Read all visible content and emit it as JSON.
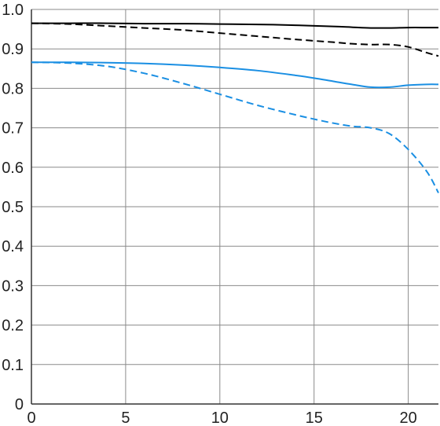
{
  "chart_data": {
    "type": "line",
    "title": "",
    "xlabel": "",
    "ylabel": "",
    "xlim": [
      0,
      21.6
    ],
    "ylim": [
      0,
      1.0
    ],
    "x_ticks": [
      0,
      5,
      10,
      15,
      20
    ],
    "x_tick_labels": [
      "0",
      "5",
      "10",
      "15",
      "20"
    ],
    "y_ticks": [
      0,
      0.1,
      0.2,
      0.3,
      0.4,
      0.5,
      0.6,
      0.7,
      0.8,
      0.9,
      1.0
    ],
    "y_tick_labels": [
      "0",
      "0.1",
      "0.2",
      "0.3",
      "0.4",
      "0.5",
      "0.6",
      "0.7",
      "0.8",
      "0.9",
      "1.0"
    ],
    "grid": true,
    "legend": "none",
    "series": [
      {
        "color": "#000000",
        "style": "solid",
        "x": [
          0,
          2,
          4,
          6,
          8,
          10,
          12,
          14,
          16,
          17,
          18,
          19,
          20,
          21,
          21.6
        ],
        "y": [
          0.965,
          0.965,
          0.965,
          0.964,
          0.964,
          0.963,
          0.962,
          0.96,
          0.957,
          0.955,
          0.953,
          0.953,
          0.954,
          0.954,
          0.954
        ]
      },
      {
        "color": "#000000",
        "style": "dashed",
        "x": [
          0,
          2,
          4,
          6,
          8,
          10,
          12,
          14,
          16,
          17,
          18,
          19,
          20,
          21,
          21.6
        ],
        "y": [
          0.965,
          0.963,
          0.958,
          0.953,
          0.948,
          0.94,
          0.932,
          0.924,
          0.917,
          0.913,
          0.911,
          0.911,
          0.905,
          0.89,
          0.882
        ]
      },
      {
        "color": "#1a8fe3",
        "style": "solid",
        "x": [
          0,
          2,
          4,
          6,
          8,
          10,
          12,
          14,
          15,
          16,
          17,
          18,
          19,
          20,
          21,
          21.6
        ],
        "y": [
          0.866,
          0.866,
          0.865,
          0.863,
          0.859,
          0.853,
          0.845,
          0.833,
          0.826,
          0.818,
          0.81,
          0.803,
          0.803,
          0.808,
          0.81,
          0.81
        ]
      },
      {
        "color": "#1a8fe3",
        "style": "dashed",
        "x": [
          0,
          2,
          4,
          6,
          8,
          10,
          12,
          14,
          15,
          16,
          17,
          18,
          19,
          20,
          21,
          21.6
        ],
        "y": [
          0.866,
          0.864,
          0.856,
          0.838,
          0.813,
          0.785,
          0.757,
          0.733,
          0.722,
          0.712,
          0.704,
          0.7,
          0.685,
          0.645,
          0.588,
          0.535
        ]
      }
    ]
  }
}
